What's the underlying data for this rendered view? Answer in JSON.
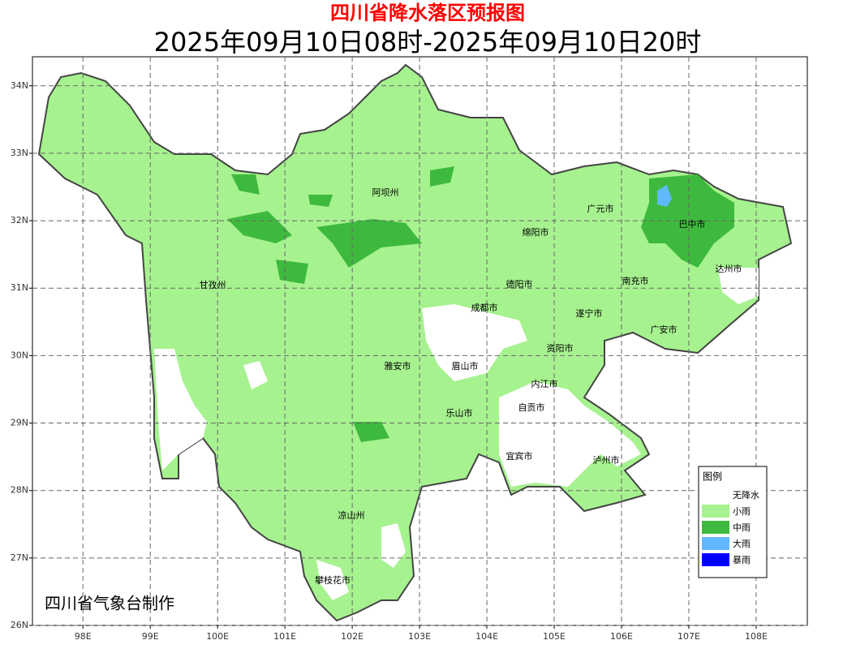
{
  "map": {
    "title": "四川省降水落区预报图",
    "subtitle": "2025年09月10日08时-2025年09月10日20时",
    "credit": "四川省气象台制作",
    "xlim": [
      97.25,
      108.76
    ],
    "ylim": [
      26,
      34.43
    ],
    "xticks": [
      {
        "value": 98,
        "label": "98E"
      },
      {
        "value": 99,
        "label": "99E"
      },
      {
        "value": 100,
        "label": "100E"
      },
      {
        "value": 101,
        "label": "101E"
      },
      {
        "value": 102,
        "label": "102E"
      },
      {
        "value": 103,
        "label": "103E"
      },
      {
        "value": 104,
        "label": "104E"
      },
      {
        "value": 105,
        "label": "105E"
      },
      {
        "value": 106,
        "label": "106E"
      },
      {
        "value": 107,
        "label": "107E"
      },
      {
        "value": 108,
        "label": "108E"
      }
    ],
    "yticks": [
      {
        "value": 26,
        "label": "26N"
      },
      {
        "value": 27,
        "label": "27N"
      },
      {
        "value": 28,
        "label": "28N"
      },
      {
        "value": 29,
        "label": "29N"
      },
      {
        "value": 30,
        "label": "30N"
      },
      {
        "value": 31,
        "label": "31N"
      },
      {
        "value": 32,
        "label": "32N"
      },
      {
        "value": 33,
        "label": "33N"
      },
      {
        "value": 34,
        "label": "34N"
      }
    ],
    "grid": true,
    "cities": [
      "阿坝州",
      "广元市",
      "巴中市",
      "绵阳市",
      "达州市",
      "甘孜州",
      "德阳市",
      "南充市",
      "成都市",
      "遂宁市",
      "广安市",
      "资阳市",
      "雅安市",
      "眉山市",
      "内江市",
      "自贡市",
      "乐山市",
      "宜宾市",
      "泸州市",
      "凉山州",
      "攀枝花市"
    ],
    "legend": {
      "title": "图例",
      "items": [
        {
          "name": "无降水",
          "color": "#ffffff"
        },
        {
          "name": "小雨",
          "color": "#a6f28f"
        },
        {
          "name": "中雨",
          "color": "#3dba3d"
        },
        {
          "name": "大雨",
          "color": "#61b8ff"
        },
        {
          "name": "暴雨",
          "color": "#0000fe"
        }
      ]
    }
  }
}
